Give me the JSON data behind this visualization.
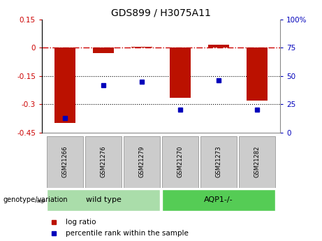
{
  "title": "GDS899 / H3075A11",
  "samples": [
    "GSM21266",
    "GSM21276",
    "GSM21279",
    "GSM21270",
    "GSM21273",
    "GSM21282"
  ],
  "log_ratio": [
    -0.4,
    -0.03,
    0.005,
    -0.265,
    0.015,
    -0.28
  ],
  "percentile_rank": [
    13,
    42,
    45,
    20,
    46,
    20
  ],
  "ylim_left": [
    -0.45,
    0.15
  ],
  "ylim_right": [
    0,
    100
  ],
  "yticks_left": [
    0.15,
    0.0,
    -0.15,
    -0.3,
    -0.45
  ],
  "yticks_left_labels": [
    "0.15",
    "0",
    "-0.15",
    "-0.3",
    "-0.45"
  ],
  "yticks_right": [
    100,
    75,
    50,
    25,
    0
  ],
  "yticks_right_labels": [
    "100%",
    "75",
    "50",
    "25",
    "0"
  ],
  "bar_color": "#bb1100",
  "dot_color": "#0000bb",
  "hline_color": "#cc0000",
  "dotted_lines": [
    -0.15,
    -0.3
  ],
  "groups": [
    {
      "label": "wild type",
      "indices": [
        0,
        1,
        2
      ],
      "color": "#aaddaa"
    },
    {
      "label": "AQP1-/-",
      "indices": [
        3,
        4,
        5
      ],
      "color": "#55cc55"
    }
  ],
  "group_label": "genotype/variation",
  "legend_log_ratio": "log ratio",
  "legend_percentile": "percentile rank within the sample",
  "bar_width": 0.55,
  "sample_box_color": "#cccccc",
  "sample_box_edge": "#888888"
}
